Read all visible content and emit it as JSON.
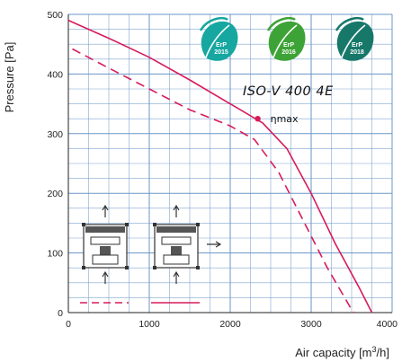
{
  "chart_data": {
    "type": "line",
    "xlabel": "Air capacity [m³/h]",
    "ylabel": "Pressure [Pa]",
    "xlim": [
      0,
      4000
    ],
    "ylim": [
      0,
      500
    ],
    "x_ticks": [
      "0",
      "1000",
      "2000",
      "3000",
      "4000"
    ],
    "y_ticks": [
      "0",
      "100",
      "200",
      "300",
      "400",
      "500"
    ],
    "grid": true,
    "title": "ISO-V 400 4E",
    "series": [
      {
        "line_style": "solid",
        "color": "#d81b5a",
        "points": [
          [
            0,
            490
          ],
          [
            500,
            460
          ],
          [
            1000,
            428
          ],
          [
            1500,
            390
          ],
          [
            2000,
            350
          ],
          [
            2400,
            318
          ],
          [
            2700,
            275
          ],
          [
            3000,
            200
          ],
          [
            3300,
            115
          ],
          [
            3600,
            40
          ],
          [
            3750,
            0
          ]
        ]
      },
      {
        "line_style": "dashed",
        "color": "#d81b5a",
        "points": [
          [
            50,
            442
          ],
          [
            500,
            410
          ],
          [
            1000,
            375
          ],
          [
            1500,
            340
          ],
          [
            2000,
            313
          ],
          [
            2300,
            290
          ],
          [
            2600,
            235
          ],
          [
            2900,
            155
          ],
          [
            3200,
            75
          ],
          [
            3500,
            5
          ],
          [
            3530,
            0
          ]
        ]
      }
    ],
    "annotations": {
      "eta_max": {
        "label": "ηmax",
        "x": 2340,
        "y": 325
      }
    },
    "badges": [
      {
        "line1": "ErP",
        "line2": "2015",
        "color": "#16a7a0"
      },
      {
        "line1": "ErP",
        "line2": "2016",
        "color": "#3ea336"
      },
      {
        "line1": "ErP",
        "line2": "2018",
        "color": "#17786a"
      }
    ],
    "mounting_icons": [
      {
        "curve": "dashed",
        "arrows": [
          "up",
          "up"
        ]
      },
      {
        "curve": "solid",
        "arrows": [
          "up",
          "right"
        ]
      }
    ]
  }
}
